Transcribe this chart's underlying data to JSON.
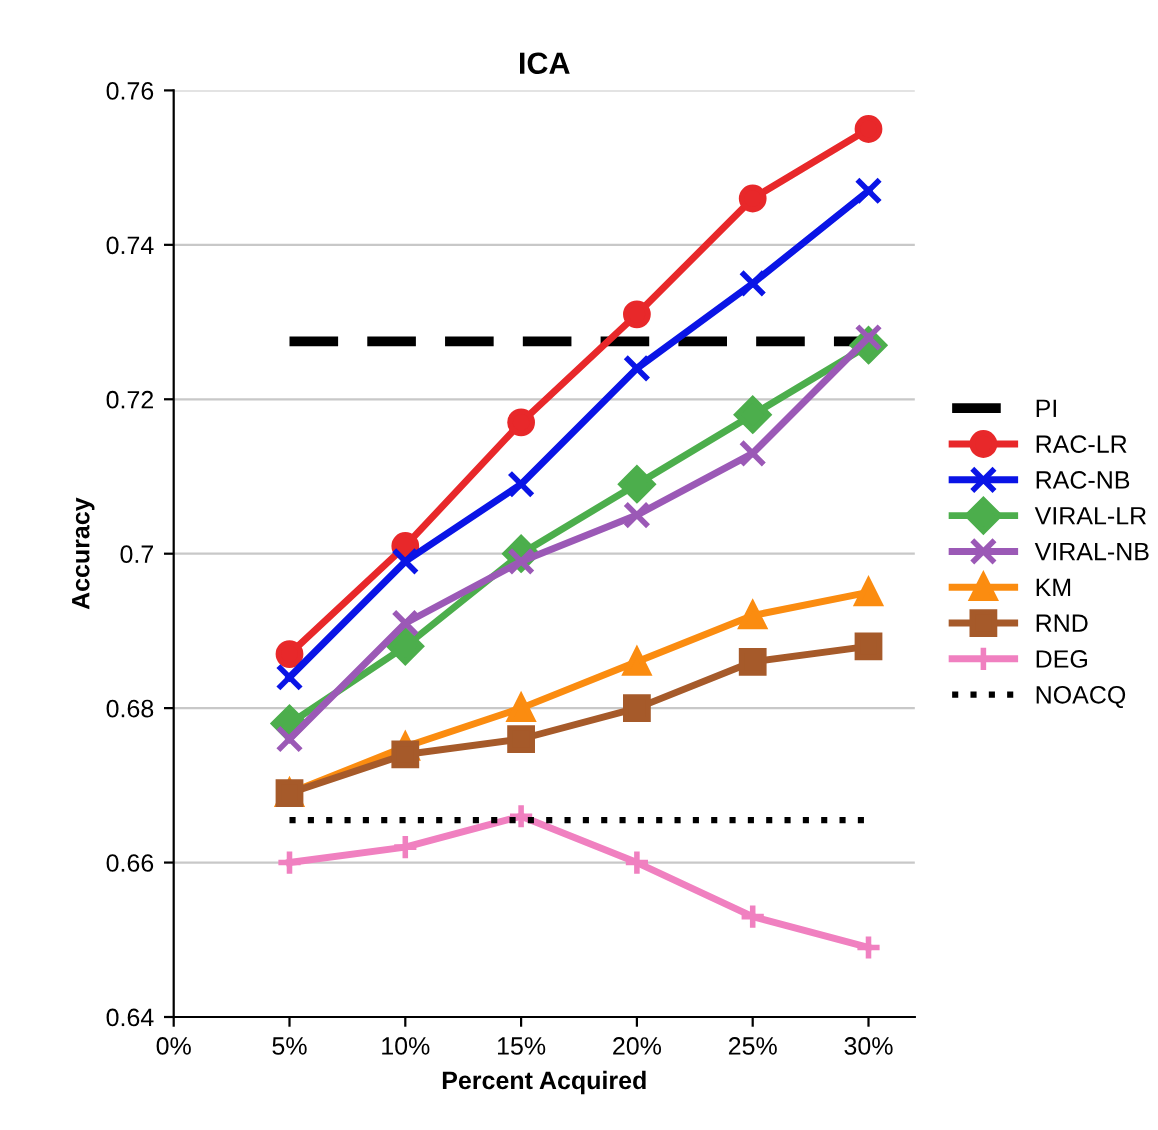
{
  "chart_data": {
    "type": "line",
    "title": "ICA",
    "xlabel": "Percent Acquired",
    "ylabel": "Accuracy",
    "x": [
      5,
      10,
      15,
      20,
      25,
      30
    ],
    "xlim": [
      0,
      32
    ],
    "xticks": [
      {
        "value": 0,
        "label": "0%"
      },
      {
        "value": 5,
        "label": "5%"
      },
      {
        "value": 10,
        "label": "10%"
      },
      {
        "value": 15,
        "label": "15%"
      },
      {
        "value": 20,
        "label": "20%"
      },
      {
        "value": 25,
        "label": "25%"
      },
      {
        "value": 30,
        "label": "30%"
      }
    ],
    "ylim": [
      0.64,
      0.76
    ],
    "yticks": [
      0.64,
      0.66,
      0.68,
      0.7,
      0.72,
      0.74,
      0.76
    ],
    "grid": "y",
    "legend": "right",
    "series": [
      {
        "name": "PI",
        "color": "#000000",
        "values": [
          0.7275,
          0.7275,
          0.7275,
          0.7275,
          0.7275,
          0.7275
        ],
        "line_style": "dashed",
        "marker": "none"
      },
      {
        "name": "RAC-LR",
        "color": "#e8282a",
        "values": [
          0.687,
          0.701,
          0.717,
          0.731,
          0.746,
          0.755
        ],
        "marker": "circle"
      },
      {
        "name": "RAC-NB",
        "color": "#0a14e6",
        "values": [
          0.684,
          0.699,
          0.709,
          0.724,
          0.735,
          0.747
        ],
        "marker": "cross"
      },
      {
        "name": "VIRAL-LR",
        "color": "#4cae4c",
        "values": [
          0.678,
          0.688,
          0.7,
          0.709,
          0.718,
          0.727
        ],
        "marker": "diamond"
      },
      {
        "name": "VIRAL-NB",
        "color": "#9b59b6",
        "values": [
          0.676,
          0.691,
          0.699,
          0.705,
          0.713,
          0.728
        ],
        "marker": "cross"
      },
      {
        "name": "KM",
        "color": "#fb8c10",
        "values": [
          0.669,
          0.675,
          0.68,
          0.686,
          0.692,
          0.695
        ],
        "marker": "triangle"
      },
      {
        "name": "RND",
        "color": "#a65a2a",
        "values": [
          0.669,
          0.674,
          0.676,
          0.68,
          0.686,
          0.688
        ],
        "marker": "square"
      },
      {
        "name": "DEG",
        "color": "#f080c0",
        "values": [
          0.66,
          0.662,
          0.666,
          0.66,
          0.653,
          0.649
        ],
        "marker": "plus"
      },
      {
        "name": "NOACQ",
        "color": "#000000",
        "values": [
          0.6655,
          0.6655,
          0.6655,
          0.6655,
          0.6655,
          0.6655
        ],
        "line_style": "dotted",
        "marker": "none"
      }
    ]
  }
}
